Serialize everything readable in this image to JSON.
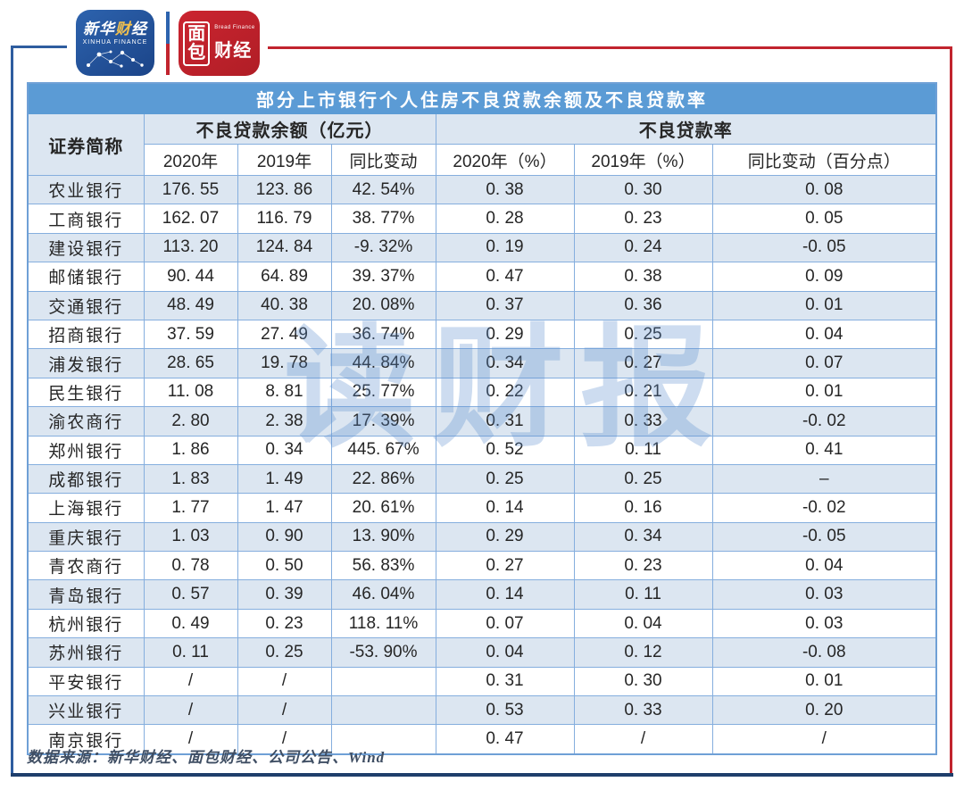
{
  "brand": {
    "xinhua": {
      "name_left": "新华",
      "name_accent": "财",
      "name_right": "经",
      "subtitle": "XINHUA FINANCE"
    },
    "bread": {
      "char_top": "面",
      "char_bottom": "包",
      "en": "Bread Finance",
      "right": "财经"
    }
  },
  "table": {
    "title": "部分上市银行个人住房不良贷款余额及不良贷款率",
    "group_headers": [
      "证券简称",
      "不良贷款余额（亿元）",
      "不良贷款率"
    ],
    "sub_headers": [
      "2020年",
      "2019年",
      "同比变动",
      "2020年（%）",
      "2019年（%）",
      "同比变动（百分点）"
    ],
    "rows": [
      [
        "农业银行",
        "176. 55",
        "123. 86",
        "42. 54%",
        "0. 38",
        "0. 30",
        "0. 08"
      ],
      [
        "工商银行",
        "162. 07",
        "116. 79",
        "38. 77%",
        "0. 28",
        "0. 23",
        "0. 05"
      ],
      [
        "建设银行",
        "113. 20",
        "124. 84",
        "-9. 32%",
        "0. 19",
        "0. 24",
        "-0. 05"
      ],
      [
        "邮储银行",
        "90. 44",
        "64. 89",
        "39. 37%",
        "0. 47",
        "0. 38",
        "0. 09"
      ],
      [
        "交通银行",
        "48. 49",
        "40. 38",
        "20. 08%",
        "0. 37",
        "0. 36",
        "0. 01"
      ],
      [
        "招商银行",
        "37. 59",
        "27. 49",
        "36. 74%",
        "0. 29",
        "0. 25",
        "0. 04"
      ],
      [
        "浦发银行",
        "28. 65",
        "19. 78",
        "44. 84%",
        "0. 34",
        "0. 27",
        "0. 07"
      ],
      [
        "民生银行",
        "11. 08",
        "8. 81",
        "25. 77%",
        "0. 22",
        "0. 21",
        "0. 01"
      ],
      [
        "渝农商行",
        "2. 80",
        "2. 38",
        "17. 39%",
        "0. 31",
        "0. 33",
        "-0. 02"
      ],
      [
        "郑州银行",
        "1. 86",
        "0. 34",
        "445. 67%",
        "0. 52",
        "0. 11",
        "0. 41"
      ],
      [
        "成都银行",
        "1. 83",
        "1. 49",
        "22. 86%",
        "0. 25",
        "0. 25",
        "–"
      ],
      [
        "上海银行",
        "1. 77",
        "1. 47",
        "20. 61%",
        "0. 14",
        "0. 16",
        "-0. 02"
      ],
      [
        "重庆银行",
        "1. 03",
        "0. 90",
        "13. 90%",
        "0. 29",
        "0. 34",
        "-0. 05"
      ],
      [
        "青农商行",
        "0. 78",
        "0. 50",
        "56. 83%",
        "0. 27",
        "0. 23",
        "0. 04"
      ],
      [
        "青岛银行",
        "0. 57",
        "0. 39",
        "46. 04%",
        "0. 14",
        "0. 11",
        "0. 03"
      ],
      [
        "杭州银行",
        "0. 49",
        "0. 23",
        "118. 11%",
        "0. 07",
        "0. 04",
        "0. 03"
      ],
      [
        "苏州银行",
        "0. 11",
        "0. 25",
        "-53. 90%",
        "0. 04",
        "0. 12",
        "-0. 08"
      ],
      [
        "平安银行",
        "/",
        "/",
        "",
        "0. 31",
        "0. 30",
        "0. 01"
      ],
      [
        "兴业银行",
        "/",
        "/",
        "",
        "0. 53",
        "0. 33",
        "0. 20"
      ],
      [
        "南京银行",
        "/",
        "/",
        "",
        "0. 47",
        "/",
        "/"
      ]
    ]
  },
  "watermark": "读财报",
  "footer": {
    "source": "数据来源：新华财经、面包财经、公司公告、Wind"
  },
  "colors": {
    "title_bar": "#5B9BD5",
    "row_alt": "#DCE6F1",
    "cell_border": "#85AEDE",
    "frame_blue": "#2E5D9F",
    "frame_navy": "#1F3E6B",
    "frame_red": "#C1242E",
    "logo_blue": "#2D63AE",
    "logo_red": "#C4242C",
    "watermark_blue": "#5B8FD0"
  },
  "chart_data": {
    "type": "table",
    "title": "部分上市银行个人住房不良贷款余额及不良贷款率",
    "column_groups": [
      "证券简称",
      "不良贷款余额（亿元）",
      "不良贷款率"
    ],
    "columns": [
      "证券简称",
      "不良贷款余额2020年(亿元)",
      "不良贷款余额2019年(亿元)",
      "同比变动",
      "不良贷款率2020年(%)",
      "不良贷款率2019年(%)",
      "同比变动(百分点)"
    ],
    "rows": [
      [
        "农业银行",
        176.55,
        123.86,
        "42.54%",
        0.38,
        0.3,
        0.08
      ],
      [
        "工商银行",
        162.07,
        116.79,
        "38.77%",
        0.28,
        0.23,
        0.05
      ],
      [
        "建设银行",
        113.2,
        124.84,
        "-9.32%",
        0.19,
        0.24,
        -0.05
      ],
      [
        "邮储银行",
        90.44,
        64.89,
        "39.37%",
        0.47,
        0.38,
        0.09
      ],
      [
        "交通银行",
        48.49,
        40.38,
        "20.08%",
        0.37,
        0.36,
        0.01
      ],
      [
        "招商银行",
        37.59,
        27.49,
        "36.74%",
        0.29,
        0.25,
        0.04
      ],
      [
        "浦发银行",
        28.65,
        19.78,
        "44.84%",
        0.34,
        0.27,
        0.07
      ],
      [
        "民生银行",
        11.08,
        8.81,
        "25.77%",
        0.22,
        0.21,
        0.01
      ],
      [
        "渝农商行",
        2.8,
        2.38,
        "17.39%",
        0.31,
        0.33,
        -0.02
      ],
      [
        "郑州银行",
        1.86,
        0.34,
        "445.67%",
        0.52,
        0.11,
        0.41
      ],
      [
        "成都银行",
        1.83,
        1.49,
        "22.86%",
        0.25,
        0.25,
        "–"
      ],
      [
        "上海银行",
        1.77,
        1.47,
        "20.61%",
        0.14,
        0.16,
        -0.02
      ],
      [
        "重庆银行",
        1.03,
        0.9,
        "13.90%",
        0.29,
        0.34,
        -0.05
      ],
      [
        "青农商行",
        0.78,
        0.5,
        "56.83%",
        0.27,
        0.23,
        0.04
      ],
      [
        "青岛银行",
        0.57,
        0.39,
        "46.04%",
        0.14,
        0.11,
        0.03
      ],
      [
        "杭州银行",
        0.49,
        0.23,
        "118.11%",
        0.07,
        0.04,
        0.03
      ],
      [
        "苏州银行",
        0.11,
        0.25,
        "-53.90%",
        0.04,
        0.12,
        -0.08
      ],
      [
        "平安银行",
        "/",
        "/",
        "",
        0.31,
        0.3,
        0.01
      ],
      [
        "兴业银行",
        "/",
        "/",
        "",
        0.53,
        0.33,
        0.2
      ],
      [
        "南京银行",
        "/",
        "/",
        "",
        0.47,
        "/",
        "/"
      ]
    ]
  }
}
